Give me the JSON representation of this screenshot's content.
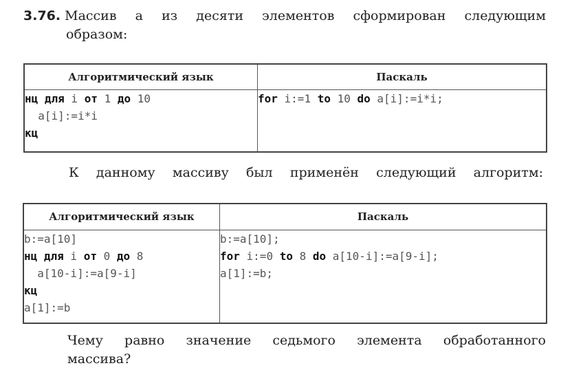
{
  "intro": {
    "number": "3.76.",
    "line1": "Массив a из десяти элементов сформирован следующим",
    "line2": "образом:"
  },
  "table1": {
    "headers": [
      "Алгоритмический язык",
      "Паскаль"
    ],
    "algo_lines": [
      [
        {
          "t": "нц для",
          "b": true
        },
        {
          "t": " i ",
          "b": false
        },
        {
          "t": "от",
          "b": true
        },
        {
          "t": " 1 ",
          "b": false
        },
        {
          "t": "до",
          "b": true
        },
        {
          "t": " 10",
          "b": false
        }
      ],
      [
        {
          "t": "  a[i]:=i*i",
          "b": false
        }
      ],
      [
        {
          "t": "кц",
          "b": true
        }
      ]
    ],
    "pascal_lines": [
      [
        {
          "t": "for",
          "b": true
        },
        {
          "t": " i:=1 ",
          "b": false
        },
        {
          "t": "to",
          "b": true
        },
        {
          "t": " 10 ",
          "b": false
        },
        {
          "t": "do",
          "b": true
        },
        {
          "t": " a[i]:=i*i;",
          "b": false
        }
      ]
    ]
  },
  "middle_text": "К данному массиву был применён следующий алгоритм:",
  "table2": {
    "headers": [
      "Алгоритмический язык",
      "Паскаль"
    ],
    "algo_lines": [
      [
        {
          "t": "b:=a[10]",
          "b": false
        }
      ],
      [
        {
          "t": "нц для",
          "b": true
        },
        {
          "t": " i ",
          "b": false
        },
        {
          "t": "от",
          "b": true
        },
        {
          "t": " 0 ",
          "b": false
        },
        {
          "t": "до",
          "b": true
        },
        {
          "t": " 8",
          "b": false
        }
      ],
      [
        {
          "t": "  a[10-i]:=a[9-i]",
          "b": false
        }
      ],
      [
        {
          "t": "кц",
          "b": true
        }
      ],
      [
        {
          "t": "a[1]:=b",
          "b": false
        }
      ]
    ],
    "pascal_lines": [
      [
        {
          "t": "b:=a[10];",
          "b": false
        }
      ],
      [
        {
          "t": "for",
          "b": true
        },
        {
          "t": " i:=0 ",
          "b": false
        },
        {
          "t": "to",
          "b": true
        },
        {
          "t": " 8 ",
          "b": false
        },
        {
          "t": "do",
          "b": true
        },
        {
          "t": " a[10-i]:=a[9-i];",
          "b": false
        }
      ],
      [
        {
          "t": "a[1]:=b;",
          "b": false
        }
      ]
    ]
  },
  "question": {
    "line1": "Чему равно значение седьмого элемента обработанного",
    "line2": "массива?"
  }
}
